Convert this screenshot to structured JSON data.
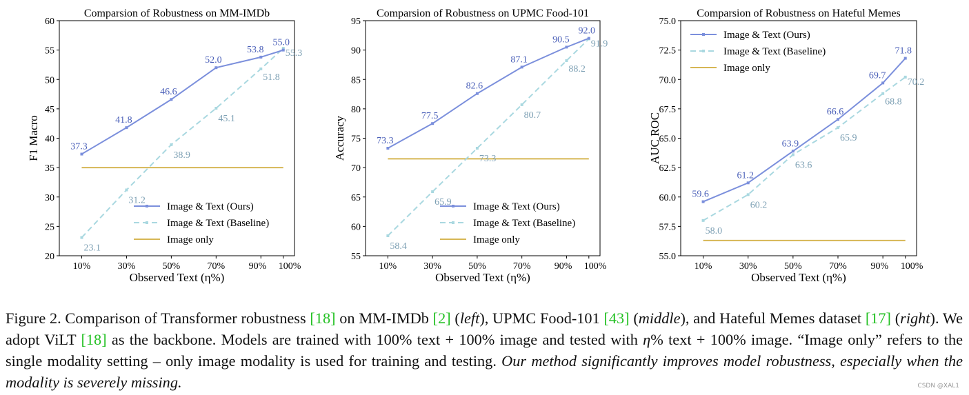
{
  "chart_data": [
    {
      "type": "line",
      "title": "Comparsion of Robustness on MM-IMDb",
      "xlabel": "Observed Text (η%)",
      "ylabel": "F1 Macro",
      "categories": [
        "10%",
        "30%",
        "50%",
        "70%",
        "90%",
        "100%"
      ],
      "x": [
        10,
        30,
        50,
        70,
        90,
        100
      ],
      "ylim": [
        20,
        60
      ],
      "yticks": [
        20,
        25,
        30,
        35,
        40,
        45,
        50,
        55,
        60
      ],
      "ytick_labels": [
        "20",
        "25",
        "30",
        "35",
        "40",
        "45",
        "50",
        "55",
        "60"
      ],
      "series": [
        {
          "name": "Image & Text (Ours)",
          "values": [
            37.3,
            41.8,
            46.6,
            52.0,
            53.8,
            55.0
          ],
          "labels": [
            "37.3",
            "41.8",
            "46.6",
            "52.0",
            "53.8",
            "55.0"
          ]
        },
        {
          "name": "Image & Text (Baseline)",
          "values": [
            23.1,
            31.2,
            38.9,
            45.1,
            51.8,
            55.3
          ],
          "labels": [
            "23.1",
            "31.2",
            "38.9",
            "45.1",
            "51.8",
            "55.3"
          ]
        },
        {
          "name": "Image only",
          "values": [
            35.0,
            35.0,
            35.0,
            35.0,
            35.0,
            35.0
          ],
          "labels": []
        }
      ],
      "legend": "lower-right"
    },
    {
      "type": "line",
      "title": "Comparsion of Robustness on UPMC Food-101",
      "xlabel": "Observed Text (η%)",
      "ylabel": "Accuracy",
      "categories": [
        "10%",
        "30%",
        "50%",
        "70%",
        "90%",
        "100%"
      ],
      "x": [
        10,
        30,
        50,
        70,
        90,
        100
      ],
      "ylim": [
        55,
        95
      ],
      "yticks": [
        55,
        60,
        65,
        70,
        75,
        80,
        85,
        90,
        95
      ],
      "ytick_labels": [
        "55",
        "60",
        "65",
        "70",
        "75",
        "80",
        "85",
        "90",
        "95"
      ],
      "series": [
        {
          "name": "Image & Text (Ours)",
          "values": [
            73.3,
            77.5,
            82.6,
            87.1,
            90.5,
            92.0
          ],
          "labels": [
            "73.3",
            "77.5",
            "82.6",
            "87.1",
            "90.5",
            "92.0"
          ]
        },
        {
          "name": "Image & Text (Baseline)",
          "values": [
            58.4,
            65.9,
            73.3,
            80.7,
            88.2,
            91.9
          ],
          "labels": [
            "58.4",
            "65.9",
            "73.3",
            "80.7",
            "88.2",
            "91.9"
          ]
        },
        {
          "name": "Image only",
          "values": [
            71.5,
            71.5,
            71.5,
            71.5,
            71.5,
            71.5
          ],
          "labels": []
        }
      ],
      "legend": "lower-right"
    },
    {
      "type": "line",
      "title": "Comparsion of Robustness on Hateful Memes",
      "xlabel": "Observed Text (η%)",
      "ylabel": "AUC ROC",
      "categories": [
        "10%",
        "30%",
        "50%",
        "70%",
        "90%",
        "100%"
      ],
      "x": [
        10,
        30,
        50,
        70,
        90,
        100
      ],
      "ylim": [
        55,
        75
      ],
      "yticks": [
        55,
        57.5,
        60,
        62.5,
        65,
        67.5,
        70,
        72.5,
        75
      ],
      "ytick_labels": [
        "55.0",
        "57.5",
        "60.0",
        "62.5",
        "65.0",
        "67.5",
        "70.0",
        "72.5",
        "75.0"
      ],
      "series": [
        {
          "name": "Image & Text (Ours)",
          "values": [
            59.6,
            61.2,
            63.9,
            66.6,
            69.7,
            71.8
          ],
          "labels": [
            "59.6",
            "61.2",
            "63.9",
            "66.6",
            "69.7",
            "71.8"
          ]
        },
        {
          "name": "Image & Text (Baseline)",
          "values": [
            58.0,
            60.2,
            63.6,
            65.9,
            68.8,
            70.2
          ],
          "labels": [
            "58.0",
            "60.2",
            "63.6",
            "65.9",
            "68.8",
            "70.2"
          ]
        },
        {
          "name": "Image only",
          "values": [
            56.3,
            56.3,
            56.3,
            56.3,
            56.3,
            56.3
          ],
          "labels": []
        }
      ],
      "legend": "upper-left"
    }
  ],
  "colors": {
    "ours": "#7b8fdc",
    "baseline": "#a9d8e0",
    "image_only": "#d6b654",
    "ours_label": "#4a5fb8",
    "baseline_label": "#7da0b4",
    "citation": "#22c022"
  },
  "caption": {
    "p1": "Figure 2.  Comparison of Transformer robustness ",
    "c1": "[18]",
    "p2": " on MM-IMDb ",
    "c2": "[2]",
    "p3": " (",
    "left": "left",
    "p4": "), UPMC Food-101 ",
    "c3": "[43]",
    "p5": " (",
    "middle": "middle",
    "p6": "), and Hateful Memes dataset ",
    "c4": "[17]",
    "p7": " (",
    "right": "right",
    "p8": ").  We adopt ViLT ",
    "c5": "[18]",
    "p9": " as the backbone.  Models are trained with 100% text + 100% image and tested with ",
    "eta": "η",
    "p10": "% text + 100% image.  “Image only” refers to the single modality setting – only image modality is used for training and testing. ",
    "emph": "Our method significantly improves model robustness, especially when the modality is severely missing."
  },
  "watermark": "CSDN @XAL1"
}
